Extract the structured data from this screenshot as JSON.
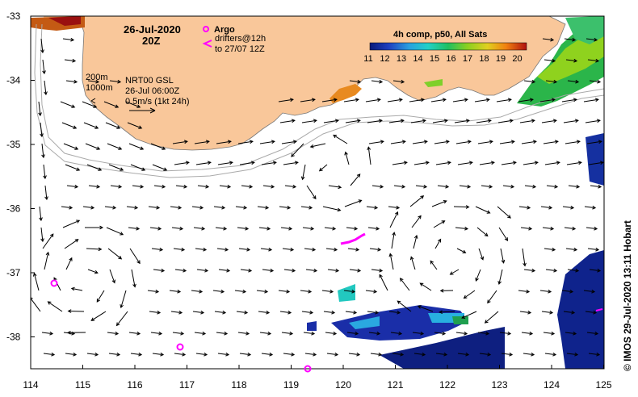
{
  "header": {
    "date": "26-Jul-2020",
    "time": "20Z"
  },
  "legend": {
    "argo_label": "Argo",
    "drifters_line1": "drifters@12h",
    "drifters_line2": "to 27/07 12Z",
    "depth_200": "200m",
    "depth_1000": "1000m",
    "product": "NRT00 GSL",
    "product_date": "26-Jul 06:00Z",
    "scale_label": "0.5m/s (1kt 24h)"
  },
  "colorbar": {
    "title": "4h comp, p50, All Sats",
    "ticks": [
      "11",
      "12",
      "13",
      "14",
      "15",
      "16",
      "17",
      "18",
      "19",
      "20"
    ]
  },
  "axes": {
    "x_ticks": [
      "114",
      "115",
      "116",
      "117",
      "118",
      "119",
      "120",
      "121",
      "122",
      "123",
      "124",
      "125"
    ],
    "y_ticks": [
      "-33",
      "-34",
      "-35",
      "-36",
      "-37",
      "-38"
    ]
  },
  "credit": "© IMOS 29-Jul-2020 13:11 Hobart",
  "colors": {
    "land": "#f9c79a",
    "argo": "#ff00ff",
    "arrow": "#000000"
  }
}
